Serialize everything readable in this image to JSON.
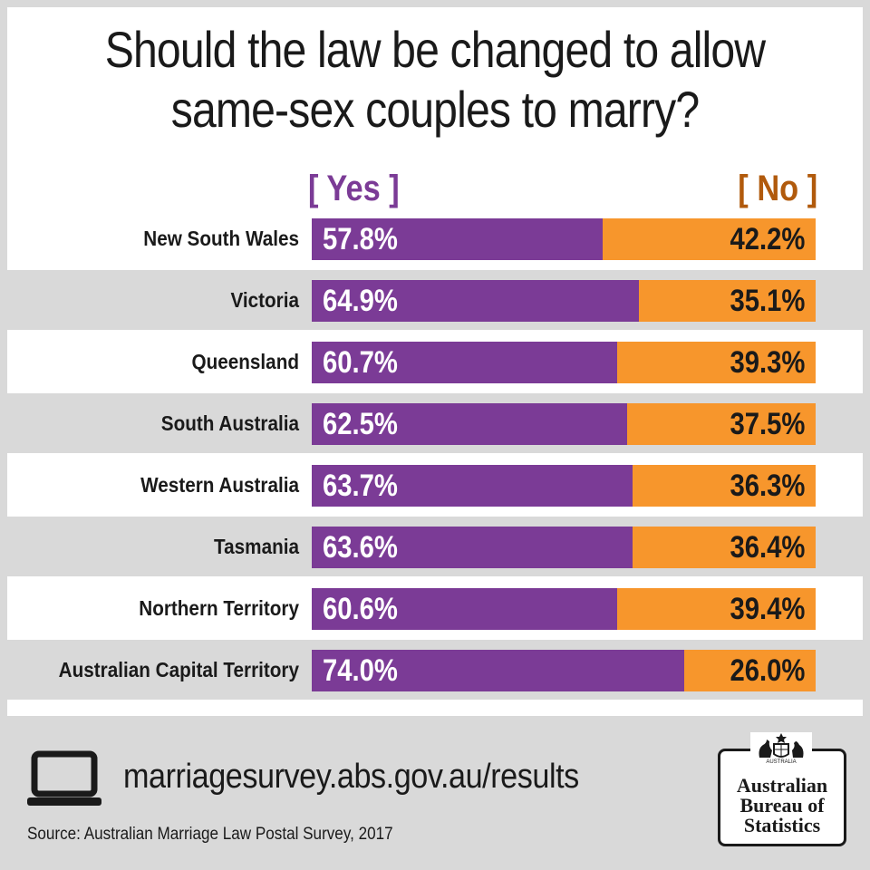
{
  "chart_data": {
    "type": "bar",
    "stacked": true,
    "orientation": "horizontal",
    "title": "Should the law be changed to allow same-sex couples to marry?",
    "categories": [
      "New South Wales",
      "Victoria",
      "Queensland",
      "South Australia",
      "Western Australia",
      "Tasmania",
      "Northern Territory",
      "Australian Capital Territory"
    ],
    "series": [
      {
        "name": "[ Yes ]",
        "color": "#7b3b96",
        "values": [
          57.8,
          64.9,
          60.7,
          62.5,
          63.7,
          63.6,
          60.6,
          74.0
        ],
        "labels": [
          "57.8%",
          "64.9%",
          "60.7%",
          "62.5%",
          "63.7%",
          "63.6%",
          "60.6%",
          "74.0%"
        ]
      },
      {
        "name": "[ No ]",
        "color": "#f7962c",
        "values": [
          42.2,
          35.1,
          39.3,
          37.5,
          36.3,
          36.4,
          39.4,
          26.0
        ],
        "labels": [
          "42.2%",
          "35.1%",
          "39.3%",
          "37.5%",
          "36.3%",
          "36.4%",
          "39.4%",
          "26.0%"
        ]
      }
    ],
    "xlim": [
      0,
      100
    ],
    "legend": "top"
  },
  "footer": {
    "url": "marriagesurvey.abs.gov.au/results",
    "source": "Source: Australian Marriage Law Postal Survey, 2017",
    "laptop_icon": "laptop-icon"
  },
  "logo": {
    "lines": [
      "Australian",
      "Bureau of",
      "Statistics"
    ],
    "crest_text": "AUSTRALIA"
  },
  "colors": {
    "yes": "#7b3b96",
    "no": "#f7962c",
    "yes_heading": "#7b3b96",
    "no_heading": "#b15a0c",
    "band": "#d9d9d9"
  }
}
